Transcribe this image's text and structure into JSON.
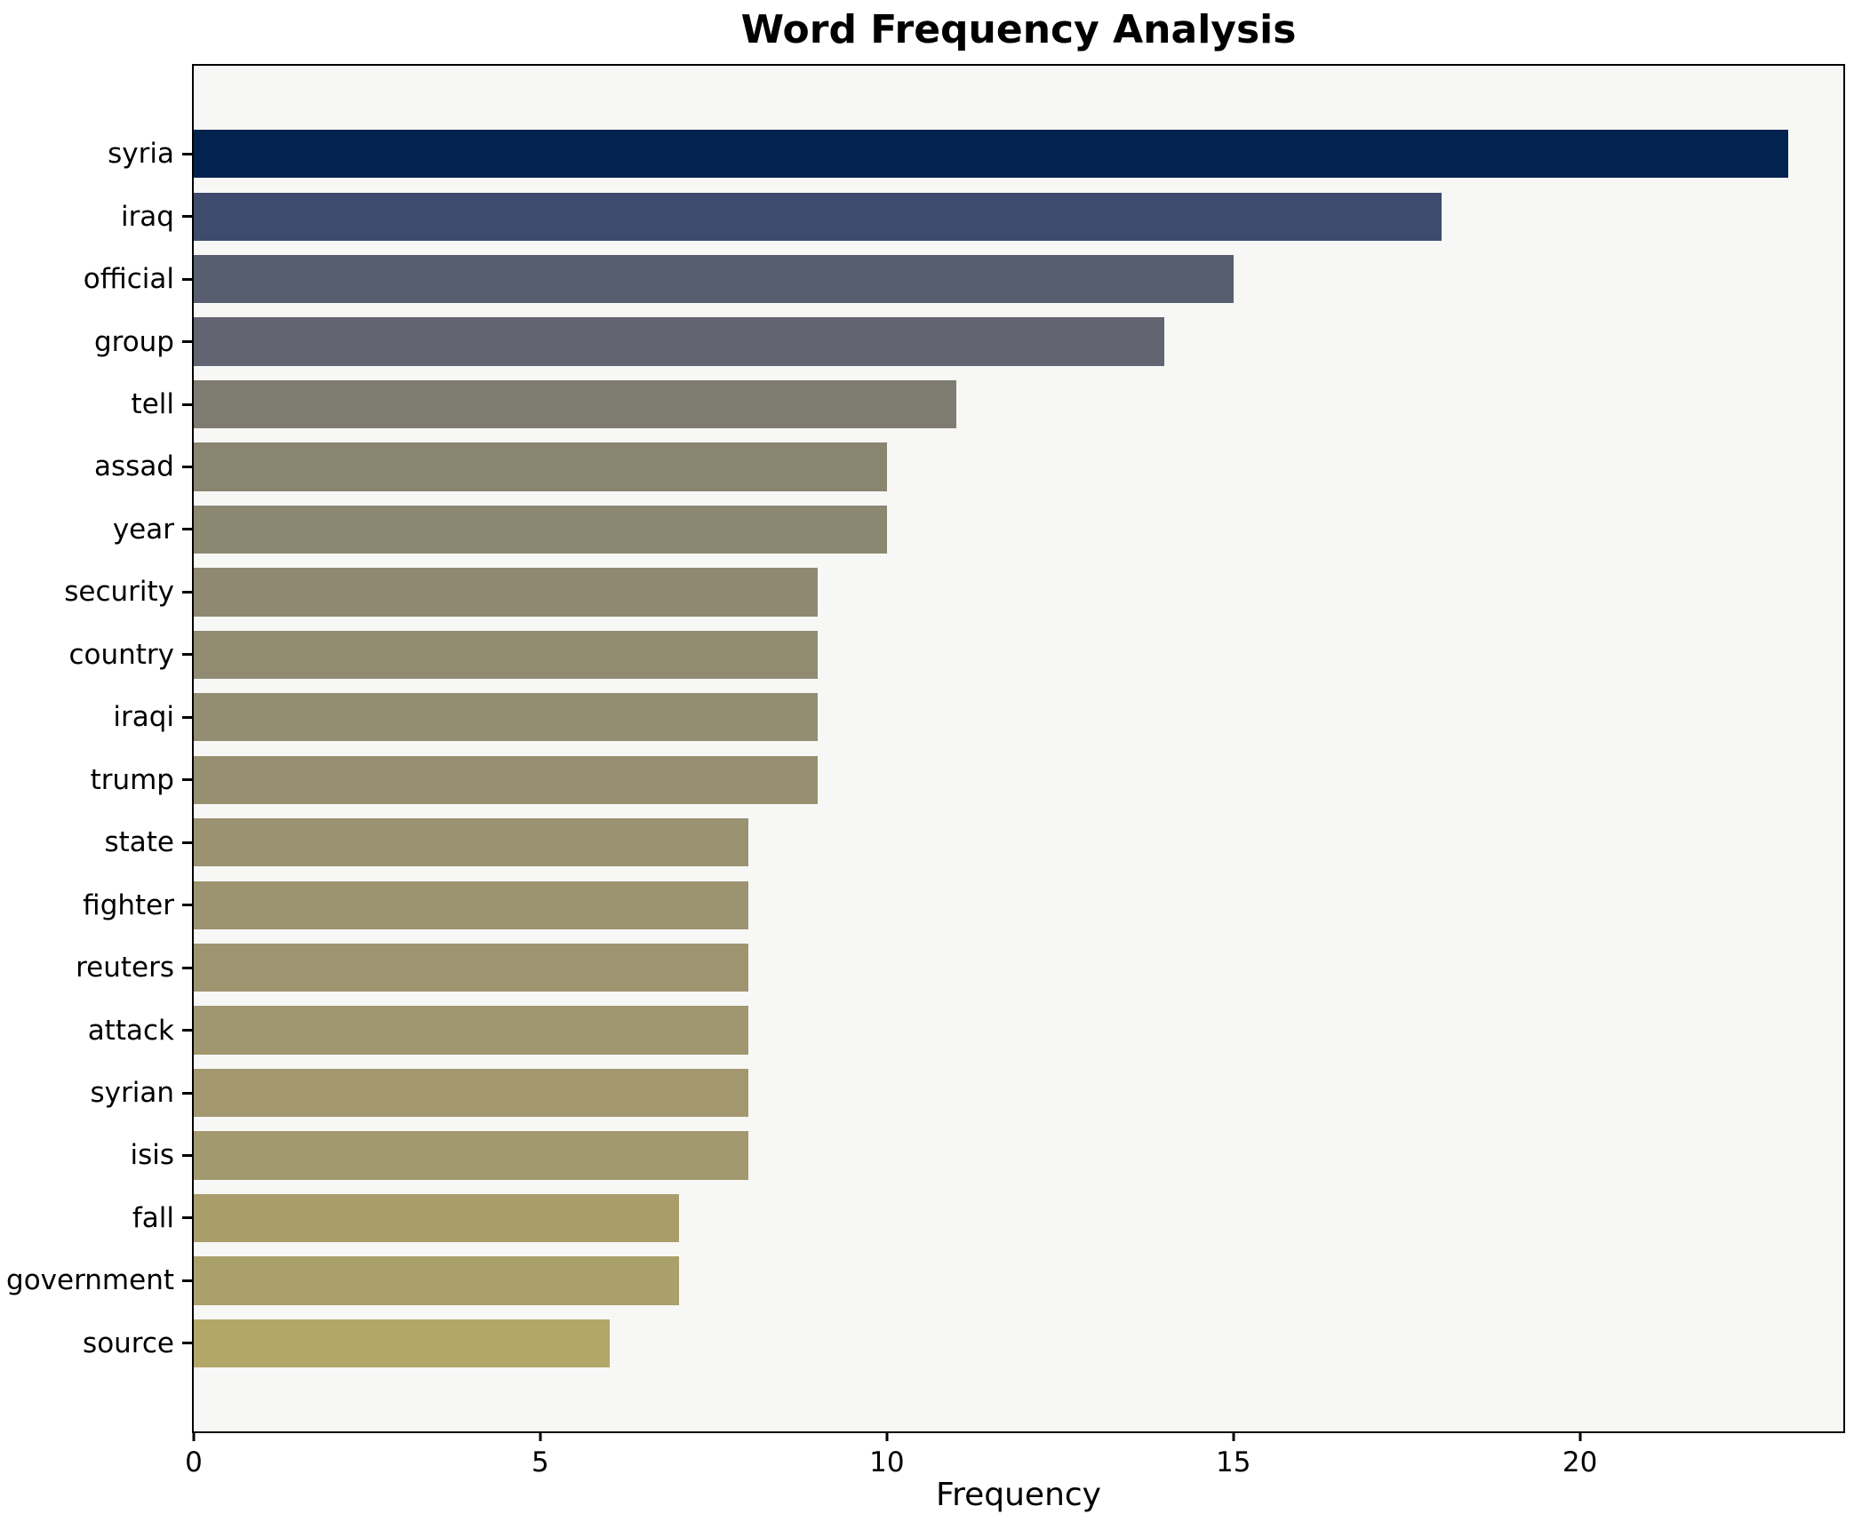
{
  "chart": {
    "title": "Word Frequency Analysis",
    "xlabel": "Frequency"
  },
  "chart_data": {
    "type": "bar",
    "orientation": "horizontal",
    "title": "Word Frequency Analysis",
    "xlabel": "Frequency",
    "ylabel": "",
    "grid": false,
    "legend": null,
    "categories": [
      "syria",
      "iraq",
      "official",
      "group",
      "tell",
      "assad",
      "year",
      "security",
      "country",
      "iraqi",
      "trump",
      "state",
      "fighter",
      "reuters",
      "attack",
      "syrian",
      "isis",
      "fall",
      "government",
      "source"
    ],
    "values": [
      23,
      18,
      15,
      14,
      11,
      10,
      10,
      9,
      9,
      9,
      9,
      8,
      8,
      8,
      8,
      8,
      8,
      7,
      7,
      6
    ],
    "bar_colors": [
      "#02234e",
      "#3e4b6d",
      "#565e70",
      "#636471",
      "#7e7b70",
      "#8a8570",
      "#8c8771",
      "#8f8972",
      "#918b72",
      "#938d72",
      "#979070",
      "#9a9270",
      "#9c9370",
      "#9e9470",
      "#a09670",
      "#a2976f",
      "#a3996f",
      "#a89d6b",
      "#aaa06c",
      "#b3a767"
    ],
    "xlim": [
      0,
      23.8
    ],
    "x_ticks": [
      0,
      5,
      10,
      15,
      20
    ],
    "colors": {
      "figure_background": "#ffffff",
      "plot_background": "#f7f7f6",
      "axis": "#000000",
      "text": "#000000"
    }
  }
}
